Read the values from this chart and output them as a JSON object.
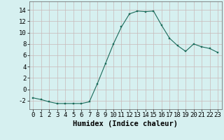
{
  "x": [
    0,
    1,
    2,
    3,
    4,
    5,
    6,
    7,
    8,
    9,
    10,
    11,
    12,
    13,
    14,
    15,
    16,
    17,
    18,
    19,
    20,
    21,
    22,
    23
  ],
  "y": [
    -1.5,
    -1.8,
    -2.2,
    -2.5,
    -2.5,
    -2.5,
    -2.5,
    -2.2,
    1.0,
    4.5,
    8.0,
    11.0,
    13.3,
    13.8,
    13.7,
    13.8,
    11.3,
    9.0,
    7.7,
    6.7,
    8.0,
    7.5,
    7.2,
    6.5
  ],
  "line_color": "#1a6b5a",
  "marker": "s",
  "marker_size": 2.0,
  "bg_color": "#d6f0f0",
  "grid_color": "#c8b8b8",
  "xlabel": "Humidex (Indice chaleur)",
  "ylim": [
    -3.5,
    15.5
  ],
  "xlim": [
    -0.5,
    23.5
  ],
  "yticks": [
    -2,
    0,
    2,
    4,
    6,
    8,
    10,
    12,
    14
  ],
  "xticks": [
    0,
    1,
    2,
    3,
    4,
    5,
    6,
    7,
    8,
    9,
    10,
    11,
    12,
    13,
    14,
    15,
    16,
    17,
    18,
    19,
    20,
    21,
    22,
    23
  ],
  "xlabel_fontsize": 7.5,
  "tick_fontsize": 6.5
}
